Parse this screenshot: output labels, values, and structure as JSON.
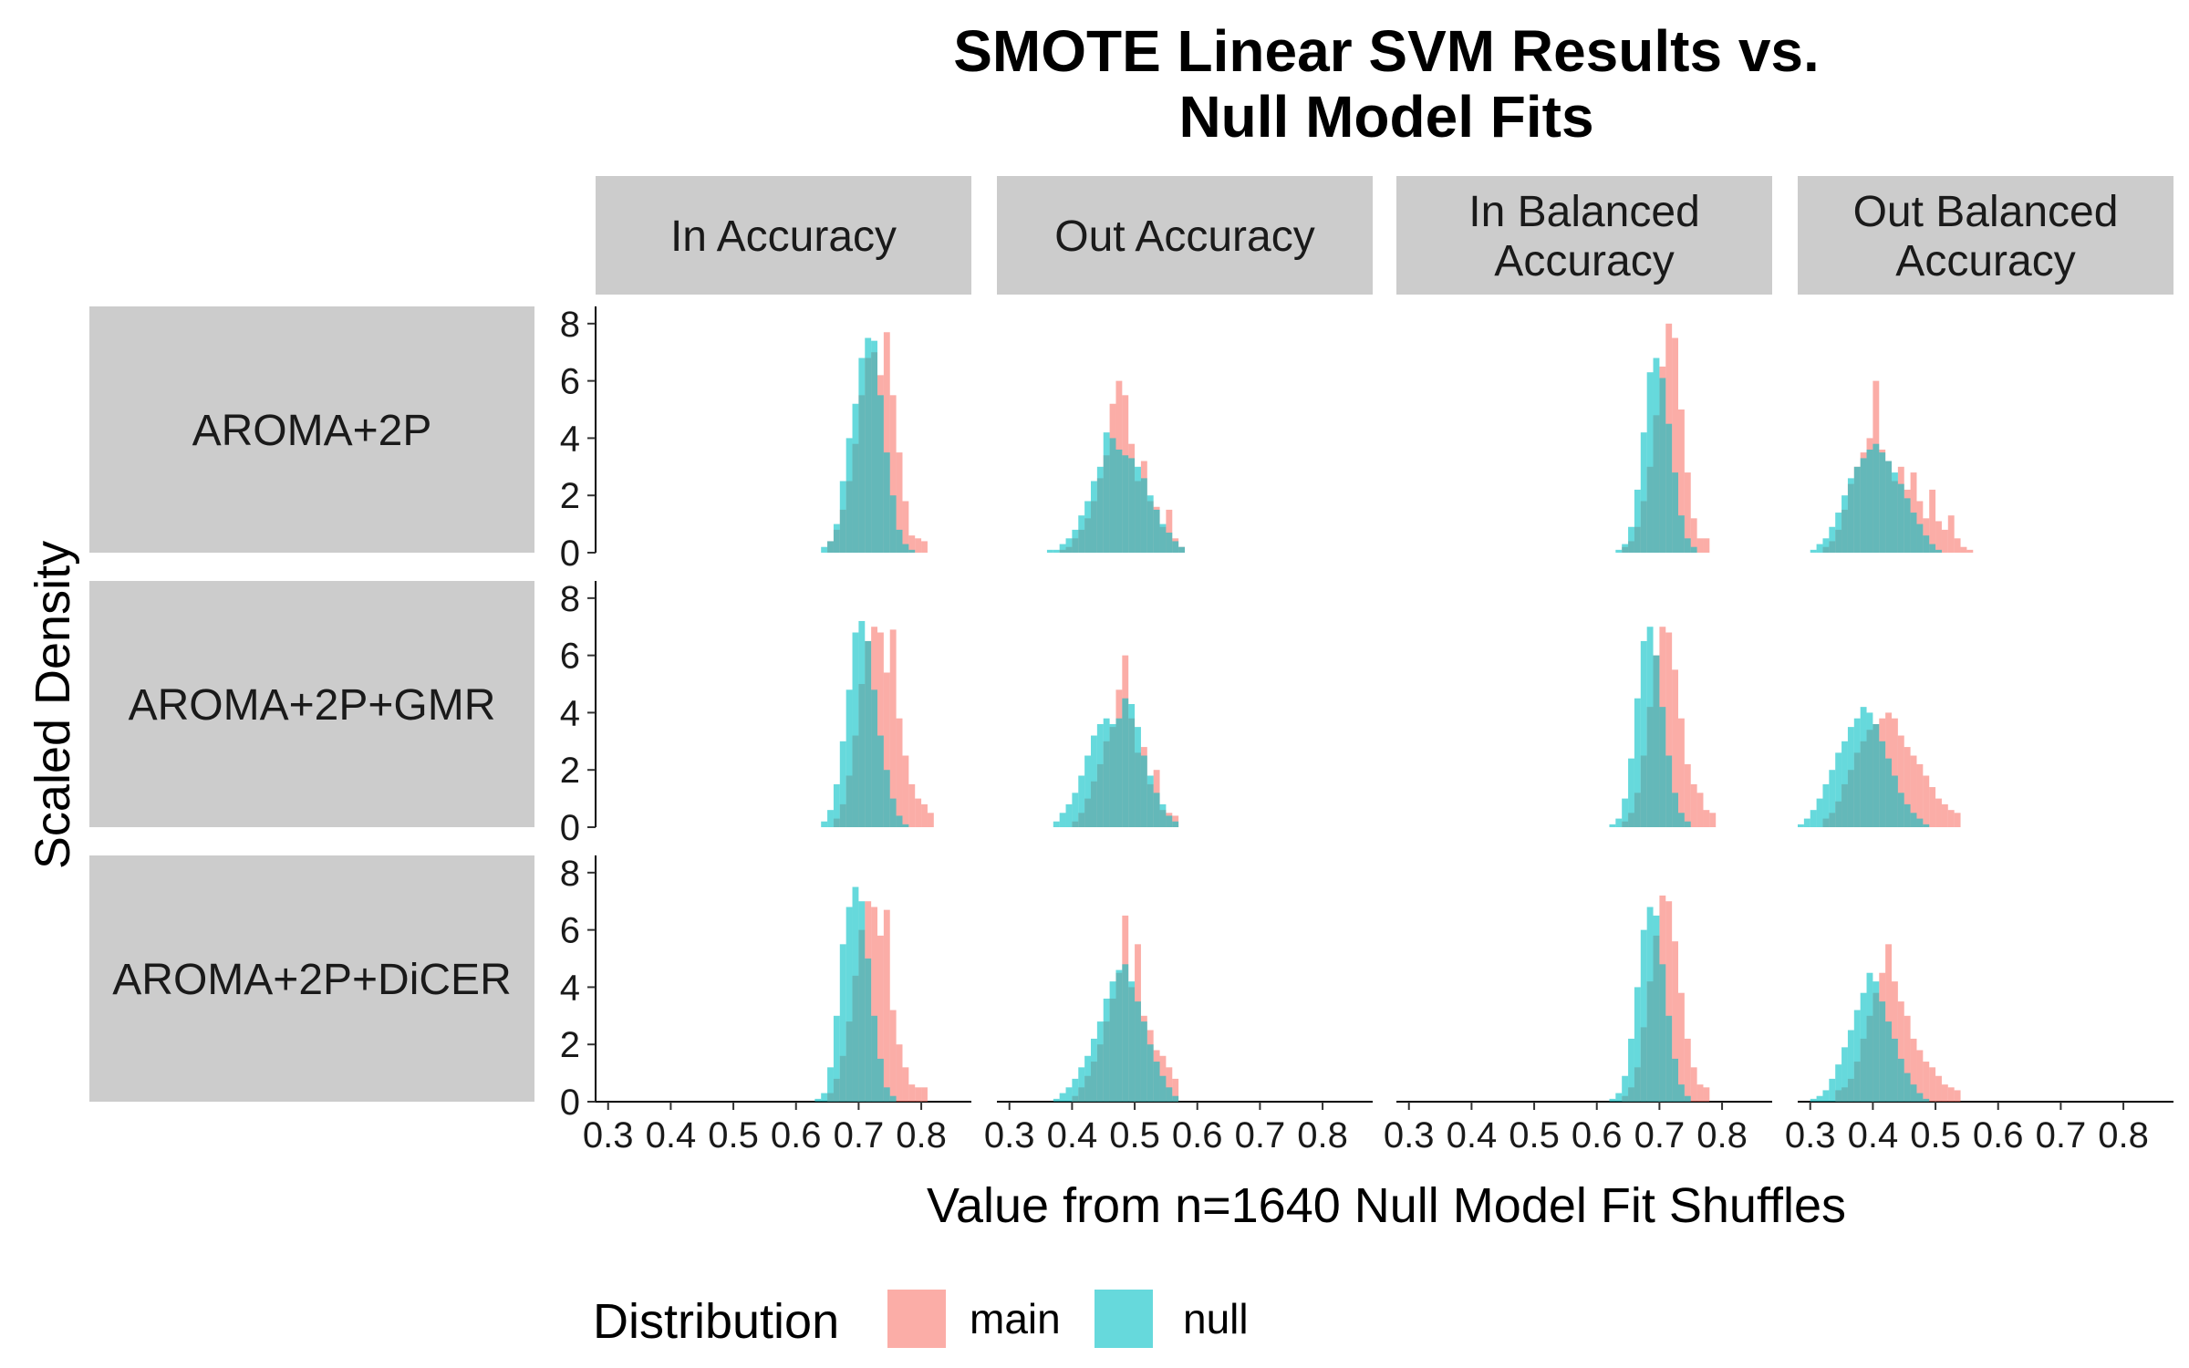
{
  "chart_data": {
    "type": "histogram",
    "title": "SMOTE Linear SVM Results vs. Null Model Fits",
    "title_lines": [
      "SMOTE Linear SVM Results vs.",
      "Null Model Fits"
    ],
    "xlabel": "Value from n=1640 Null Model Fit Shuffles",
    "ylabel": "Scaled Density",
    "xlim": [
      0.28,
      0.88
    ],
    "ylim": [
      0,
      8.6
    ],
    "x_ticks": [
      0.3,
      0.4,
      0.5,
      0.6,
      0.7,
      0.8
    ],
    "x_tick_labels": [
      "0.3",
      "0.4",
      "0.5",
      "0.6",
      "0.7",
      "0.8"
    ],
    "y_ticks": [
      0,
      2,
      4,
      6,
      8
    ],
    "y_tick_labels": [
      "0",
      "2",
      "4",
      "6",
      "8"
    ],
    "grid": false,
    "bin_width": 0.01,
    "column_facets": [
      {
        "lines": [
          "In Accuracy"
        ]
      },
      {
        "lines": [
          "Out Accuracy"
        ]
      },
      {
        "lines": [
          "In Balanced",
          "Accuracy"
        ]
      },
      {
        "lines": [
          "Out Balanced",
          "Accuracy"
        ]
      }
    ],
    "row_facets": [
      "AROMA+2P",
      "AROMA+2P+GMR",
      "AROMA+2P+DiCER"
    ],
    "legend": {
      "title": "Distribution",
      "position": "bottom",
      "entries": [
        {
          "name": "main",
          "color": "#F8766D"
        },
        {
          "name": "null",
          "color": "#00BFC4"
        }
      ]
    },
    "series_colors": {
      "main": "#F8766D",
      "null": "#00BFC4"
    },
    "series_opacity": 0.6,
    "panels": [
      {
        "row": "AROMA+2P",
        "col": "In Accuracy",
        "main": {
          "start": 0.65,
          "values": [
            0.4,
            0.8,
            1.5,
            2.5,
            3.8,
            5.5,
            6.8,
            7.0,
            6.2,
            7.7,
            5.5,
            3.5,
            1.8,
            0.6,
            0.5,
            0.4
          ]
        },
        "null": {
          "start": 0.64,
          "values": [
            0.2,
            0.4,
            1.0,
            2.5,
            4.0,
            5.2,
            6.8,
            7.5,
            7.4,
            5.5,
            3.5,
            2.0,
            0.8,
            0.3,
            0.1
          ]
        }
      },
      {
        "row": "AROMA+2P",
        "col": "Out Accuracy",
        "main": {
          "start": 0.38,
          "values": [
            0.1,
            0.2,
            0.5,
            0.8,
            1.2,
            1.8,
            2.6,
            3.4,
            5.2,
            6.0,
            5.5,
            3.8,
            2.5,
            3.2,
            1.8,
            1.6,
            0.9,
            1.5,
            0.5,
            0.2
          ]
        },
        "null": {
          "start": 0.36,
          "values": [
            0.1,
            0.1,
            0.3,
            0.5,
            0.8,
            1.3,
            1.8,
            2.5,
            3.0,
            4.2,
            4.0,
            3.6,
            3.4,
            3.3,
            3.0,
            2.6,
            2.0,
            1.5,
            1.0,
            0.7,
            0.4,
            0.2
          ]
        }
      },
      {
        "row": "AROMA+2P",
        "col": "In Balanced Accuracy",
        "main": {
          "start": 0.64,
          "values": [
            0.2,
            0.4,
            0.9,
            1.8,
            3.0,
            4.8,
            6.5,
            8.0,
            7.5,
            5.0,
            2.8,
            1.2,
            0.5,
            0.5
          ]
        },
        "null": {
          "start": 0.63,
          "values": [
            0.1,
            0.3,
            0.9,
            2.2,
            4.2,
            6.3,
            6.8,
            6.1,
            4.5,
            2.8,
            1.3,
            0.5,
            0.2
          ]
        }
      },
      {
        "row": "AROMA+2P",
        "col": "Out Balanced Accuracy",
        "main": {
          "start": 0.32,
          "values": [
            0.2,
            0.4,
            0.8,
            1.5,
            2.4,
            3.0,
            3.5,
            4.0,
            6.0,
            3.6,
            3.2,
            2.5,
            3.0,
            2.2,
            2.8,
            1.8,
            1.2,
            2.2,
            1.1,
            0.8,
            1.3,
            0.5,
            0.2,
            0.1
          ]
        },
        "null": {
          "start": 0.3,
          "values": [
            0.1,
            0.3,
            0.5,
            0.9,
            1.4,
            2.0,
            2.6,
            3.0,
            3.3,
            3.6,
            3.8,
            3.5,
            3.2,
            2.8,
            2.4,
            1.9,
            1.4,
            1.0,
            0.6,
            0.3,
            0.1
          ]
        }
      },
      {
        "row": "AROMA+2P+GMR",
        "col": "In Accuracy",
        "main": {
          "start": 0.66,
          "values": [
            0.3,
            0.8,
            1.8,
            3.2,
            5.0,
            6.5,
            7.0,
            6.8,
            5.4,
            6.9,
            3.8,
            2.5,
            1.5,
            1.0,
            0.8,
            0.5
          ]
        },
        "null": {
          "start": 0.64,
          "values": [
            0.2,
            0.6,
            1.5,
            3.0,
            4.8,
            6.8,
            7.2,
            6.5,
            4.8,
            3.2,
            2.0,
            1.0,
            0.4,
            0.1
          ]
        }
      },
      {
        "row": "AROMA+2P+GMR",
        "col": "Out Accuracy",
        "main": {
          "start": 0.4,
          "values": [
            0.2,
            0.5,
            1.0,
            1.6,
            2.2,
            3.0,
            3.5,
            4.8,
            6.0,
            3.8,
            2.6,
            2.8,
            1.5,
            2.0,
            0.6,
            0.5,
            0.4
          ]
        },
        "null": {
          "start": 0.37,
          "values": [
            0.2,
            0.5,
            0.8,
            1.2,
            1.8,
            2.5,
            3.2,
            3.6,
            3.8,
            3.6,
            3.8,
            4.5,
            4.3,
            3.5,
            2.5,
            1.8,
            1.2,
            0.8,
            0.4,
            0.2
          ]
        }
      },
      {
        "row": "AROMA+2P+GMR",
        "col": "In Balanced Accuracy",
        "main": {
          "start": 0.64,
          "values": [
            0.2,
            0.5,
            1.2,
            2.5,
            4.2,
            6.0,
            7.0,
            6.8,
            5.5,
            3.8,
            2.2,
            1.5,
            1.2,
            0.6,
            0.5
          ]
        },
        "null": {
          "start": 0.62,
          "values": [
            0.1,
            0.3,
            1.0,
            2.4,
            4.5,
            6.5,
            7.0,
            6.0,
            4.2,
            2.5,
            1.2,
            0.5,
            0.2
          ]
        }
      },
      {
        "row": "AROMA+2P+GMR",
        "col": "Out Balanced Accuracy",
        "main": {
          "start": 0.32,
          "values": [
            0.3,
            0.5,
            0.9,
            1.5,
            2.0,
            2.6,
            3.0,
            3.4,
            3.6,
            3.8,
            4.0,
            3.8,
            3.2,
            2.8,
            2.5,
            2.2,
            1.8,
            1.4,
            1.0,
            0.8,
            0.6,
            0.5
          ]
        },
        "null": {
          "start": 0.28,
          "values": [
            0.1,
            0.3,
            0.6,
            1.0,
            1.5,
            2.0,
            2.6,
            3.0,
            3.5,
            3.8,
            4.2,
            4.0,
            3.6,
            3.0,
            2.4,
            1.8,
            1.2,
            0.8,
            0.5,
            0.3,
            0.1
          ]
        }
      },
      {
        "row": "AROMA+2P+DiCER",
        "col": "In Accuracy",
        "main": {
          "start": 0.65,
          "values": [
            0.3,
            0.8,
            1.6,
            2.8,
            4.4,
            6.0,
            7.0,
            6.8,
            5.8,
            6.7,
            3.2,
            2.0,
            1.2,
            0.6,
            0.5,
            0.5
          ]
        },
        "null": {
          "start": 0.63,
          "values": [
            0.1,
            0.3,
            1.2,
            3.0,
            5.5,
            6.8,
            7.5,
            7.0,
            5.0,
            3.0,
            1.5,
            0.5,
            0.2
          ]
        }
      },
      {
        "row": "AROMA+2P+DiCER",
        "col": "Out Accuracy",
        "main": {
          "start": 0.4,
          "values": [
            0.2,
            0.5,
            0.9,
            1.4,
            2.0,
            2.8,
            3.6,
            4.5,
            6.5,
            4.0,
            5.5,
            3.0,
            2.5,
            1.8,
            1.6,
            1.2,
            0.8
          ]
        },
        "null": {
          "start": 0.37,
          "values": [
            0.1,
            0.3,
            0.5,
            0.8,
            1.2,
            1.6,
            2.2,
            2.8,
            3.6,
            4.2,
            4.6,
            4.8,
            4.2,
            3.5,
            2.8,
            2.0,
            1.4,
            0.9,
            0.5,
            0.2
          ]
        }
      },
      {
        "row": "AROMA+2P+DiCER",
        "col": "In Balanced Accuracy",
        "main": {
          "start": 0.64,
          "values": [
            0.2,
            0.5,
            1.2,
            2.6,
            4.2,
            5.8,
            7.2,
            7.0,
            5.6,
            3.8,
            2.2,
            1.2,
            0.6,
            0.5
          ]
        },
        "null": {
          "start": 0.62,
          "values": [
            0.1,
            0.3,
            0.9,
            2.2,
            4.0,
            6.0,
            6.8,
            6.5,
            4.8,
            3.0,
            1.5,
            0.6,
            0.2
          ]
        }
      },
      {
        "row": "AROMA+2P+DiCER",
        "col": "Out Balanced Accuracy",
        "main": {
          "start": 0.34,
          "values": [
            0.4,
            0.5,
            0.8,
            1.4,
            2.2,
            3.0,
            3.8,
            4.5,
            5.5,
            4.2,
            3.5,
            3.0,
            2.2,
            1.8,
            1.4,
            1.2,
            0.9,
            0.6,
            0.5,
            0.4
          ]
        },
        "null": {
          "start": 0.3,
          "values": [
            0.1,
            0.2,
            0.4,
            0.8,
            1.3,
            1.9,
            2.5,
            3.2,
            3.8,
            4.5,
            4.2,
            3.5,
            2.8,
            2.2,
            1.5,
            1.0,
            0.6,
            0.3,
            0.1
          ]
        }
      }
    ]
  }
}
